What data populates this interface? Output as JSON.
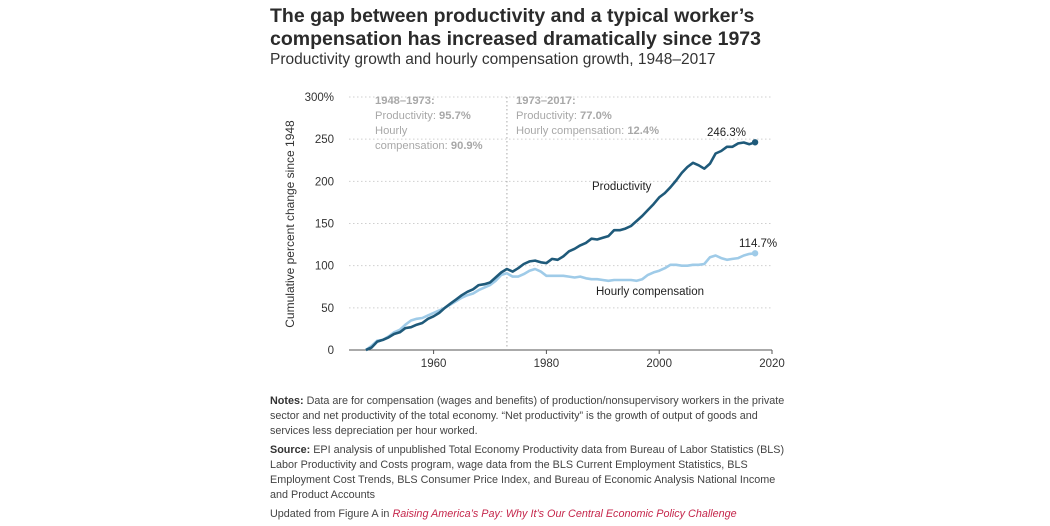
{
  "title": "The gap between productivity and a typical worker’s compensation has increased dramatically since 1973",
  "subtitle": "Productivity growth and hourly compensation growth, 1948–2017",
  "chart_data": {
    "type": "line",
    "ylabel": "Cumulative percent change since 1948",
    "xlim": [
      1945,
      2020
    ],
    "ylim": [
      0,
      300
    ],
    "x_ticks": [
      "1960",
      "1980",
      "2000",
      "2020"
    ],
    "y_ticks": [
      "0",
      "50",
      "100",
      "150",
      "200",
      "250",
      "300%"
    ],
    "grid": "horizontal dotted",
    "x": [
      1948,
      1949,
      1950,
      1951,
      1952,
      1953,
      1954,
      1955,
      1956,
      1957,
      1958,
      1959,
      1960,
      1961,
      1962,
      1963,
      1964,
      1965,
      1966,
      1967,
      1968,
      1969,
      1970,
      1971,
      1972,
      1973,
      1974,
      1975,
      1976,
      1977,
      1978,
      1979,
      1980,
      1981,
      1982,
      1983,
      1984,
      1985,
      1986,
      1987,
      1988,
      1989,
      1990,
      1991,
      1992,
      1993,
      1994,
      1995,
      1996,
      1997,
      1998,
      1999,
      2000,
      2001,
      2002,
      2003,
      2004,
      2005,
      2006,
      2007,
      2008,
      2009,
      2010,
      2011,
      2012,
      2013,
      2014,
      2015,
      2016,
      2017
    ],
    "series": [
      {
        "name": "Productivity",
        "color": "#1f5a7a",
        "values": [
          0,
          3,
          10,
          12,
          15,
          19,
          21,
          26,
          27,
          30,
          32,
          37,
          40,
          44,
          50,
          55,
          60,
          65,
          69,
          72,
          77,
          78,
          80,
          86,
          92,
          96,
          93,
          97,
          102,
          105,
          106,
          104,
          103,
          108,
          107,
          111,
          117,
          120,
          124,
          127,
          132,
          131,
          133,
          135,
          142,
          142,
          144,
          147,
          153,
          159,
          166,
          173,
          181,
          186,
          193,
          201,
          210,
          217,
          222,
          219,
          215,
          221,
          233,
          236,
          241,
          241,
          245,
          246,
          244,
          246.3
        ],
        "end_label": "246.3%"
      },
      {
        "name": "Hourly compensation",
        "color": "#9fcbe8",
        "values": [
          0,
          5,
          11,
          12,
          16,
          21,
          24,
          30,
          35,
          37,
          38,
          41,
          44,
          47,
          50,
          54,
          58,
          62,
          65,
          67,
          71,
          74,
          77,
          82,
          89,
          91,
          87,
          87,
          90,
          94,
          96,
          93,
          88,
          88,
          88,
          88,
          87,
          86,
          87,
          85,
          84,
          84,
          83,
          82,
          83,
          83,
          83,
          83,
          82,
          84,
          89,
          92,
          94,
          97,
          101,
          101,
          100,
          100,
          101,
          101,
          102,
          110,
          112,
          109,
          107,
          108,
          109,
          112,
          114,
          114.7
        ],
        "end_label": "114.7%"
      }
    ],
    "divider_year": 1973,
    "annotations": {
      "left": {
        "heading": "1948–1973:",
        "prod_label": "Productivity: ",
        "prod_value": "95.7%",
        "comp_label1": "Hourly",
        "comp_label2": "compensation: ",
        "comp_value": "90.9%"
      },
      "right": {
        "heading": "1973–2017:",
        "prod_label": "Productivity: ",
        "prod_value": "77.0%",
        "comp_label": "Hourly compensation: ",
        "comp_value": "12.4%"
      }
    }
  },
  "notes": {
    "notes_label": "Notes:",
    "notes_text": " Data are for compensation (wages and benefits) of production/nonsupervisory workers in the private sector and net productivity of the total economy. “Net productivity” is the growth of output of goods and services less depreciation per hour worked.",
    "source_label": "Source:",
    "source_text": " EPI analysis of unpublished Total Economy Productivity data from Bureau of Labor Statistics (BLS) Labor Productivity and Costs program, wage data from the BLS Current Employment Statistics, BLS Employment Cost Trends, BLS Consumer Price Index, and Bureau of Economic Analysis National Income and Product Accounts",
    "updated_text": "Updated from Figure A in ",
    "updated_link": "Raising America’s Pay: Why It’s Our Central Economic Policy Challenge"
  }
}
